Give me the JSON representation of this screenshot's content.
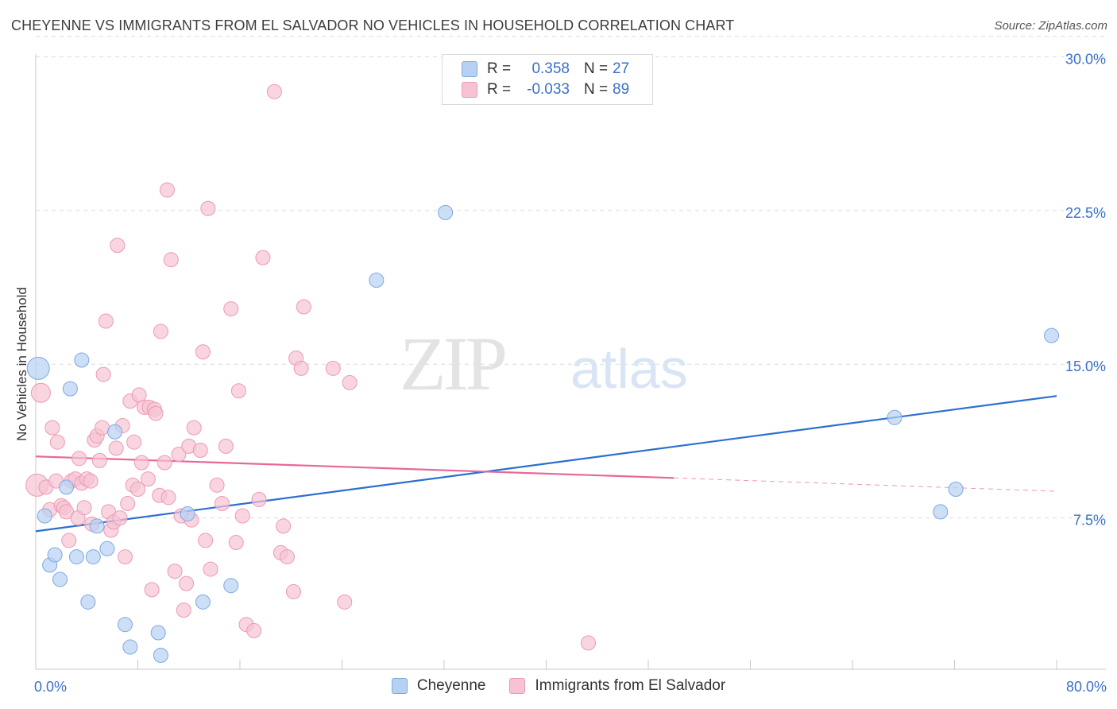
{
  "title": "CHEYENNE VS IMMIGRANTS FROM EL SALVADOR NO VEHICLES IN HOUSEHOLD CORRELATION CHART",
  "source": "Source: ZipAtlas.com",
  "watermark": {
    "zip": "ZIP",
    "atlas": "atlas"
  },
  "legend": {
    "rows": [
      {
        "r_label": "R =",
        "r_value": "0.358",
        "n_label": "N =",
        "n_value": "27"
      },
      {
        "r_label": "R =",
        "r_value": "-0.033",
        "n_label": "N =",
        "n_value": "89"
      }
    ]
  },
  "colors": {
    "cheyenne_fill": "#b7d1f3",
    "cheyenne_stroke": "#7ea8e0",
    "cheyenne_line": "#2c6fcf",
    "salvador_fill": "#f7c3d3",
    "salvador_stroke": "#eb9ab5",
    "salvador_line": "#e8679a",
    "tick_label": "#3a70c9",
    "grid": "#dcdcdc"
  },
  "chart_data": {
    "type": "scatter",
    "xlabel": "",
    "ylabel": "No Vehicles in Household",
    "xlim": [
      0,
      80
    ],
    "ylim": [
      0,
      31
    ],
    "x_tick_labels": [
      "0.0%",
      "80.0%"
    ],
    "y_ticks": [
      7.5,
      15.0,
      22.5,
      30.0
    ],
    "y_tick_labels": [
      "7.5%",
      "15.0%",
      "22.5%",
      "30.0%"
    ],
    "grid": "horizontal dashed",
    "series": [
      {
        "name": "Cheyenne",
        "points": [
          [
            0.2,
            14.8,
            14
          ],
          [
            0.7,
            7.6,
            9
          ],
          [
            1.1,
            5.2,
            9
          ],
          [
            1.5,
            5.7,
            9
          ],
          [
            1.9,
            4.5,
            9
          ],
          [
            2.7,
            13.8,
            9
          ],
          [
            2.4,
            9.0,
            9
          ],
          [
            3.2,
            5.6,
            9
          ],
          [
            3.6,
            15.2,
            9
          ],
          [
            4.1,
            3.4,
            9
          ],
          [
            4.5,
            5.6,
            9
          ],
          [
            4.8,
            7.1,
            9
          ],
          [
            5.6,
            6.0,
            9
          ],
          [
            6.2,
            11.7,
            9
          ],
          [
            7.0,
            2.3,
            9
          ],
          [
            7.4,
            1.2,
            9
          ],
          [
            9.6,
            1.9,
            9
          ],
          [
            9.8,
            0.8,
            9
          ],
          [
            11.9,
            7.7,
            9
          ],
          [
            13.1,
            3.4,
            9
          ],
          [
            15.3,
            4.2,
            9
          ],
          [
            26.7,
            19.1,
            9
          ],
          [
            32.1,
            22.4,
            9
          ],
          [
            67.3,
            12.4,
            9
          ],
          [
            70.9,
            7.8,
            9
          ],
          [
            72.1,
            8.9,
            9
          ],
          [
            79.6,
            16.4,
            9
          ]
        ]
      },
      {
        "name": "Immigrants from El Salvador",
        "points": [
          [
            0.1,
            9.1,
            14
          ],
          [
            0.4,
            13.6,
            12
          ],
          [
            0.8,
            9.0,
            9
          ],
          [
            1.1,
            7.9,
            9
          ],
          [
            1.3,
            11.9,
            9
          ],
          [
            1.6,
            9.3,
            9
          ],
          [
            1.7,
            11.2,
            9
          ],
          [
            2.0,
            8.1,
            9
          ],
          [
            2.2,
            8.0,
            9
          ],
          [
            2.4,
            7.8,
            9
          ],
          [
            2.6,
            6.4,
            9
          ],
          [
            2.8,
            9.3,
            9
          ],
          [
            3.1,
            9.4,
            9
          ],
          [
            3.3,
            7.5,
            9
          ],
          [
            3.4,
            10.4,
            9
          ],
          [
            3.6,
            9.2,
            9
          ],
          [
            3.8,
            8.0,
            9
          ],
          [
            4.0,
            9.4,
            9
          ],
          [
            4.3,
            9.3,
            9
          ],
          [
            4.4,
            7.2,
            9
          ],
          [
            4.6,
            11.3,
            9
          ],
          [
            4.8,
            11.5,
            9
          ],
          [
            5.0,
            10.3,
            9
          ],
          [
            5.2,
            11.9,
            9
          ],
          [
            5.3,
            14.5,
            9
          ],
          [
            5.5,
            17.1,
            9
          ],
          [
            5.7,
            7.8,
            9
          ],
          [
            5.9,
            6.9,
            9
          ],
          [
            6.1,
            7.3,
            9
          ],
          [
            6.3,
            10.9,
            9
          ],
          [
            6.4,
            20.8,
            9
          ],
          [
            6.6,
            7.5,
            9
          ],
          [
            6.8,
            12.0,
            9
          ],
          [
            7.0,
            5.6,
            9
          ],
          [
            7.2,
            8.2,
            9
          ],
          [
            7.4,
            13.2,
            9
          ],
          [
            7.6,
            9.1,
            9
          ],
          [
            7.7,
            11.2,
            9
          ],
          [
            8.0,
            8.9,
            9
          ],
          [
            8.1,
            13.5,
            9
          ],
          [
            8.3,
            10.2,
            9
          ],
          [
            8.5,
            12.9,
            9
          ],
          [
            8.8,
            9.4,
            9
          ],
          [
            8.9,
            12.9,
            9
          ],
          [
            9.1,
            4.0,
            9
          ],
          [
            9.3,
            12.8,
            9
          ],
          [
            9.4,
            12.6,
            9
          ],
          [
            9.7,
            8.6,
            9
          ],
          [
            9.8,
            16.6,
            9
          ],
          [
            10.1,
            10.2,
            9
          ],
          [
            10.3,
            23.5,
            9
          ],
          [
            10.4,
            8.5,
            9
          ],
          [
            10.6,
            20.1,
            9
          ],
          [
            10.9,
            4.9,
            9
          ],
          [
            11.2,
            10.6,
            9
          ],
          [
            11.4,
            7.6,
            9
          ],
          [
            11.6,
            3.0,
            9
          ],
          [
            11.8,
            4.3,
            9
          ],
          [
            12.0,
            11.0,
            9
          ],
          [
            12.2,
            7.4,
            9
          ],
          [
            12.4,
            11.9,
            9
          ],
          [
            12.9,
            10.8,
            9
          ],
          [
            13.1,
            15.6,
            9
          ],
          [
            13.3,
            6.4,
            9
          ],
          [
            13.5,
            22.6,
            9
          ],
          [
            13.7,
            5.0,
            9
          ],
          [
            14.2,
            9.1,
            9
          ],
          [
            14.6,
            8.2,
            9
          ],
          [
            14.9,
            11.0,
            9
          ],
          [
            15.3,
            17.7,
            9
          ],
          [
            15.7,
            6.3,
            9
          ],
          [
            15.9,
            13.7,
            9
          ],
          [
            16.2,
            7.6,
            9
          ],
          [
            16.5,
            2.3,
            9
          ],
          [
            17.1,
            2.0,
            9
          ],
          [
            17.5,
            8.4,
            9
          ],
          [
            17.8,
            20.2,
            9
          ],
          [
            18.7,
            28.3,
            9
          ],
          [
            19.2,
            5.8,
            9
          ],
          [
            19.4,
            7.1,
            9
          ],
          [
            19.7,
            5.6,
            9
          ],
          [
            20.2,
            3.9,
            9
          ],
          [
            20.4,
            15.3,
            9
          ],
          [
            20.8,
            14.8,
            9
          ],
          [
            21.0,
            17.8,
            9
          ],
          [
            23.3,
            14.8,
            9
          ],
          [
            24.2,
            3.4,
            9
          ],
          [
            24.6,
            14.1,
            9
          ],
          [
            43.3,
            1.4,
            9
          ]
        ]
      }
    ],
    "trendlines": [
      {
        "series": "Cheyenne",
        "from": [
          0,
          6.85
        ],
        "to": [
          80,
          13.45
        ],
        "style": "solid"
      },
      {
        "series": "Immigrants from El Salvador",
        "from": [
          0,
          10.5
        ],
        "to": [
          50,
          9.45
        ],
        "style": "solid"
      },
      {
        "series": "Immigrants from El Salvador",
        "from": [
          50,
          9.45
        ],
        "to": [
          80,
          8.8
        ],
        "style": "dashed"
      }
    ]
  }
}
